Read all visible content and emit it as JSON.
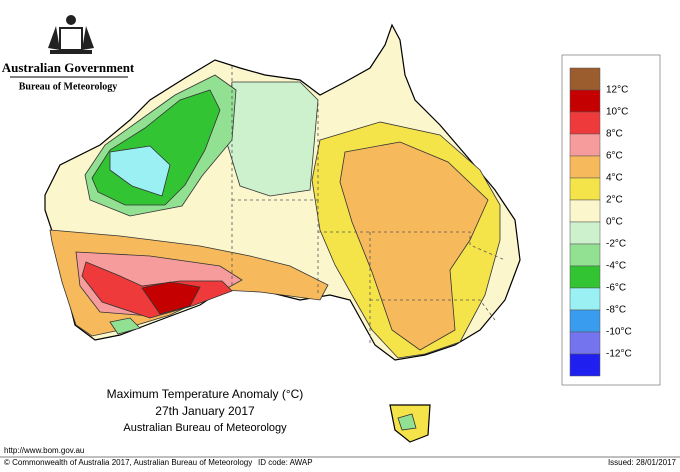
{
  "header": {
    "government": "Australian Government",
    "bureau": "Bureau of Meteorology"
  },
  "title": {
    "line1": "Maximum Temperature Anomaly (°C)",
    "line2": "27th January 2017",
    "line3": "Australian Bureau of Meteorology"
  },
  "legend": {
    "colors": [
      "#9b5c2e",
      "#c40000",
      "#ee3a3a",
      "#f79c9c",
      "#f6ba5c",
      "#f5e34a",
      "#fbf6cc",
      "#cdf1cd",
      "#92e092",
      "#33c433",
      "#9af0f2",
      "#3a9cee",
      "#7474ee",
      "#1f1ff0"
    ],
    "labels": [
      "12°C",
      "10°C",
      "8°C",
      "6°C",
      "4°C",
      "2°C",
      "0°C",
      "-2°C",
      "-4°C",
      "-6°C",
      "-8°C",
      "-10°C",
      "-12°C"
    ]
  },
  "footer": {
    "url": "http://www.bom.gov.au",
    "copyright": "© Commonwealth of Australia 2017, Australian Bureau of Meteorology",
    "id_code": "ID code: AWAP",
    "issued": "Issued: 28/01/2017"
  }
}
